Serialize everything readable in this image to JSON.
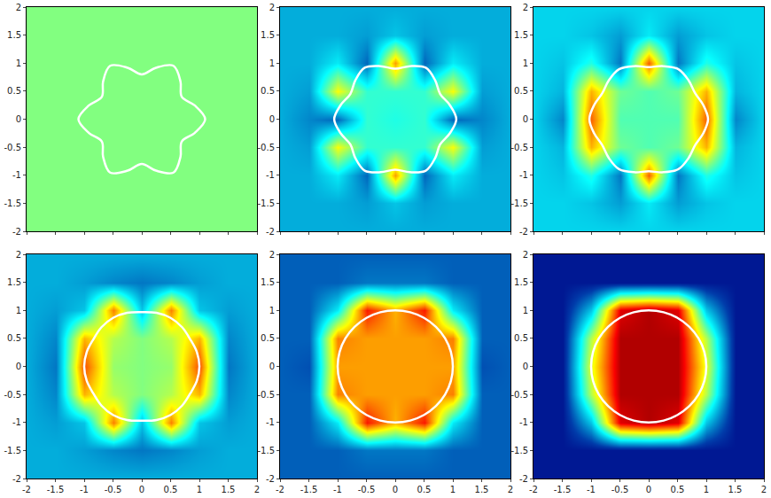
{
  "chart_data": [
    {
      "type": "heatmap",
      "xlim": [
        -2,
        2
      ],
      "ylim": [
        -2,
        2
      ],
      "xticks": [
        -2,
        -1.5,
        -1,
        -0.5,
        0,
        0.5,
        1,
        1.5,
        2
      ],
      "yticks": [
        -2,
        -1.5,
        -1,
        -0.5,
        0,
        0.5,
        1,
        1.5,
        2
      ],
      "tick_labels": "y",
      "x": [
        -2,
        -1.5,
        -1,
        -0.5,
        0,
        0.5,
        1,
        1.5,
        2
      ],
      "y": [
        -2,
        -1.5,
        -1,
        -0.5,
        0,
        0.5,
        1,
        1.5,
        2
      ],
      "zlim": [
        0,
        1
      ],
      "z": [
        [
          0.5,
          0.5,
          0.5,
          0.5,
          0.5,
          0.5,
          0.5,
          0.5,
          0.5
        ],
        [
          0.5,
          0.5,
          0.5,
          0.5,
          0.5,
          0.5,
          0.5,
          0.5,
          0.5
        ],
        [
          0.5,
          0.5,
          0.5,
          0.5,
          0.5,
          0.5,
          0.5,
          0.5,
          0.5
        ],
        [
          0.5,
          0.5,
          0.5,
          0.5,
          0.5,
          0.5,
          0.5,
          0.5,
          0.5
        ],
        [
          0.5,
          0.5,
          0.5,
          0.5,
          0.5,
          0.5,
          0.5,
          0.5,
          0.5
        ],
        [
          0.5,
          0.5,
          0.5,
          0.5,
          0.5,
          0.5,
          0.5,
          0.5,
          0.5
        ],
        [
          0.5,
          0.5,
          0.5,
          0.5,
          0.5,
          0.5,
          0.5,
          0.5,
          0.5
        ],
        [
          0.5,
          0.5,
          0.5,
          0.5,
          0.5,
          0.5,
          0.5,
          0.5,
          0.5
        ],
        [
          0.5,
          0.5,
          0.5,
          0.5,
          0.5,
          0.5,
          0.5,
          0.5,
          0.5
        ]
      ],
      "series": [
        {
          "type": "line",
          "color": "#ffffff",
          "line_style": "solid",
          "theta": [
            0,
            15,
            30,
            45,
            60,
            75,
            90,
            105,
            120,
            135,
            150,
            165,
            180,
            195,
            210,
            225,
            240,
            255,
            270,
            285,
            300,
            315,
            330,
            345,
            360
          ],
          "r": [
            1.1,
            0.95,
            0.8,
            0.95,
            1.1,
            0.95,
            0.8,
            0.95,
            1.1,
            0.95,
            0.8,
            0.95,
            1.1,
            0.95,
            0.8,
            0.95,
            1.1,
            0.95,
            0.8,
            0.95,
            1.1,
            0.95,
            0.8,
            0.95,
            1.1
          ]
        }
      ]
    },
    {
      "type": "heatmap",
      "xlim": [
        -2,
        2
      ],
      "ylim": [
        -2,
        2
      ],
      "xticks": [
        -2,
        -1.5,
        -1,
        -0.5,
        0,
        0.5,
        1,
        1.5,
        2
      ],
      "yticks": [
        -2,
        -1.5,
        -1,
        -0.5,
        0,
        0.5,
        1,
        1.5,
        2
      ],
      "tick_labels": "y",
      "x": [
        -2,
        -1.5,
        -1,
        -0.5,
        0,
        0.5,
        1,
        1.5,
        2
      ],
      "y": [
        -2,
        -1.5,
        -1,
        -0.5,
        0,
        0.5,
        1,
        1.5,
        2
      ],
      "zlim": [
        0,
        1
      ],
      "z": [
        [
          0.27,
          0.27,
          0.27,
          0.27,
          0.27,
          0.27,
          0.27,
          0.27,
          0.27
        ],
        [
          0.27,
          0.27,
          0.27,
          0.25,
          0.3,
          0.25,
          0.27,
          0.27,
          0.27
        ],
        [
          0.27,
          0.27,
          0.35,
          0.18,
          0.72,
          0.18,
          0.35,
          0.27,
          0.27
        ],
        [
          0.27,
          0.25,
          0.62,
          0.42,
          0.42,
          0.42,
          0.62,
          0.25,
          0.27
        ],
        [
          0.27,
          0.22,
          0.18,
          0.42,
          0.4,
          0.42,
          0.18,
          0.22,
          0.27
        ],
        [
          0.27,
          0.25,
          0.62,
          0.42,
          0.42,
          0.42,
          0.62,
          0.25,
          0.27
        ],
        [
          0.27,
          0.27,
          0.35,
          0.18,
          0.72,
          0.18,
          0.35,
          0.27,
          0.27
        ],
        [
          0.27,
          0.27,
          0.27,
          0.25,
          0.3,
          0.25,
          0.27,
          0.27,
          0.27
        ],
        [
          0.27,
          0.27,
          0.27,
          0.27,
          0.27,
          0.27,
          0.27,
          0.27,
          0.27
        ]
      ],
      "series": [
        {
          "type": "line",
          "color": "#ffffff",
          "line_style": "solid",
          "theta": [
            0,
            15,
            30,
            45,
            60,
            75,
            90,
            105,
            120,
            135,
            150,
            165,
            180,
            195,
            210,
            225,
            240,
            255,
            270,
            285,
            300,
            315,
            330,
            345,
            360
          ],
          "r": [
            1.06,
            0.98,
            0.9,
            0.98,
            1.06,
            0.98,
            0.9,
            0.98,
            1.06,
            0.98,
            0.9,
            0.98,
            1.06,
            0.98,
            0.9,
            0.98,
            1.06,
            0.98,
            0.9,
            0.98,
            1.06,
            0.98,
            0.9,
            0.98,
            1.06
          ]
        }
      ]
    },
    {
      "type": "heatmap",
      "xlim": [
        -2,
        2
      ],
      "ylim": [
        -2,
        2
      ],
      "xticks": [
        -2,
        -1.5,
        -1,
        -0.5,
        0,
        0.5,
        1,
        1.5,
        2
      ],
      "yticks": [
        -2,
        -1.5,
        -1,
        -0.5,
        0,
        0.5,
        1,
        1.5,
        2
      ],
      "tick_labels": "y",
      "x": [
        -2,
        -1.5,
        -1,
        -0.5,
        0,
        0.5,
        1,
        1.5,
        2
      ],
      "y": [
        -2,
        -1.5,
        -1,
        -0.5,
        0,
        0.5,
        1,
        1.5,
        2
      ],
      "zlim": [
        0,
        1
      ],
      "z": [
        [
          0.32,
          0.32,
          0.32,
          0.32,
          0.32,
          0.32,
          0.32,
          0.32,
          0.32
        ],
        [
          0.32,
          0.32,
          0.3,
          0.25,
          0.35,
          0.25,
          0.3,
          0.32,
          0.32
        ],
        [
          0.32,
          0.3,
          0.4,
          0.2,
          0.78,
          0.2,
          0.4,
          0.3,
          0.32
        ],
        [
          0.32,
          0.28,
          0.7,
          0.48,
          0.45,
          0.48,
          0.7,
          0.28,
          0.32
        ],
        [
          0.32,
          0.22,
          0.78,
          0.45,
          0.45,
          0.45,
          0.78,
          0.22,
          0.32
        ],
        [
          0.32,
          0.28,
          0.7,
          0.48,
          0.45,
          0.48,
          0.7,
          0.28,
          0.32
        ],
        [
          0.32,
          0.3,
          0.4,
          0.2,
          0.78,
          0.2,
          0.4,
          0.3,
          0.32
        ],
        [
          0.32,
          0.32,
          0.3,
          0.25,
          0.35,
          0.25,
          0.3,
          0.32,
          0.32
        ],
        [
          0.32,
          0.32,
          0.32,
          0.32,
          0.32,
          0.32,
          0.32,
          0.32,
          0.32
        ]
      ],
      "series": [
        {
          "type": "line",
          "color": "#ffffff",
          "line_style": "solid",
          "theta": [
            0,
            15,
            30,
            45,
            60,
            75,
            90,
            105,
            120,
            135,
            150,
            165,
            180,
            195,
            210,
            225,
            240,
            255,
            270,
            285,
            300,
            315,
            330,
            345,
            360
          ],
          "r": [
            1.03,
            0.98,
            0.93,
            0.98,
            1.03,
            0.98,
            0.93,
            0.98,
            1.03,
            0.98,
            0.93,
            0.98,
            1.03,
            0.98,
            0.93,
            0.98,
            1.03,
            0.98,
            0.93,
            0.98,
            1.03,
            0.98,
            0.93,
            0.98,
            1.03
          ]
        }
      ]
    },
    {
      "type": "heatmap",
      "xlim": [
        -2,
        2
      ],
      "ylim": [
        -2,
        2
      ],
      "xticks": [
        -2,
        -1.5,
        -1,
        -0.5,
        0,
        0.5,
        1,
        1.5,
        2
      ],
      "yticks": [
        -2,
        -1.5,
        -1,
        -0.5,
        0,
        0.5,
        1,
        1.5,
        2
      ],
      "x": [
        -2,
        -1.5,
        -1,
        -0.5,
        0,
        0.5,
        1,
        1.5,
        2
      ],
      "y": [
        -2,
        -1.5,
        -1,
        -0.5,
        0,
        0.5,
        1,
        1.5,
        2
      ],
      "zlim": [
        0,
        1
      ],
      "z": [
        [
          0.27,
          0.27,
          0.27,
          0.27,
          0.27,
          0.27,
          0.27,
          0.27,
          0.27
        ],
        [
          0.27,
          0.27,
          0.25,
          0.22,
          0.2,
          0.22,
          0.25,
          0.27,
          0.27
        ],
        [
          0.27,
          0.25,
          0.3,
          0.75,
          0.3,
          0.75,
          0.3,
          0.25,
          0.27
        ],
        [
          0.27,
          0.22,
          0.7,
          0.55,
          0.5,
          0.55,
          0.7,
          0.22,
          0.27
        ],
        [
          0.27,
          0.2,
          0.8,
          0.52,
          0.5,
          0.52,
          0.8,
          0.2,
          0.27
        ],
        [
          0.27,
          0.22,
          0.7,
          0.55,
          0.5,
          0.55,
          0.7,
          0.22,
          0.27
        ],
        [
          0.27,
          0.25,
          0.3,
          0.75,
          0.3,
          0.75,
          0.3,
          0.25,
          0.27
        ],
        [
          0.27,
          0.27,
          0.25,
          0.22,
          0.2,
          0.22,
          0.25,
          0.27,
          0.27
        ],
        [
          0.27,
          0.27,
          0.27,
          0.27,
          0.27,
          0.27,
          0.27,
          0.27,
          0.27
        ]
      ],
      "series": [
        {
          "type": "line",
          "color": "#ffffff",
          "line_style": "solid",
          "theta": [
            0,
            15,
            30,
            45,
            60,
            75,
            90,
            105,
            120,
            135,
            150,
            165,
            180,
            195,
            210,
            225,
            240,
            255,
            270,
            285,
            300,
            315,
            330,
            345,
            360
          ],
          "r": [
            1.0,
            0.99,
            0.97,
            0.99,
            1.0,
            0.99,
            0.97,
            0.99,
            1.0,
            0.99,
            0.97,
            0.99,
            1.0,
            0.99,
            0.97,
            0.99,
            1.0,
            0.99,
            0.97,
            0.99,
            1.0,
            0.99,
            0.97,
            0.99,
            1.0
          ]
        }
      ]
    },
    {
      "type": "heatmap",
      "xlim": [
        -2,
        2
      ],
      "ylim": [
        -2,
        2
      ],
      "xticks": [
        -2,
        -1.5,
        -1,
        -0.5,
        0,
        0.5,
        1,
        1.5,
        2
      ],
      "yticks": [
        -2,
        -1.5,
        -1,
        -0.5,
        0,
        0.5,
        1,
        1.5,
        2
      ],
      "x": [
        -2,
        -1.5,
        -1,
        -0.5,
        0,
        0.5,
        1,
        1.5,
        2
      ],
      "y": [
        -2,
        -1.5,
        -1,
        -0.5,
        0,
        0.5,
        1,
        1.5,
        2
      ],
      "zlim": [
        0,
        1
      ],
      "z": [
        [
          0.17,
          0.17,
          0.17,
          0.17,
          0.17,
          0.17,
          0.17,
          0.17,
          0.17
        ],
        [
          0.17,
          0.17,
          0.17,
          0.2,
          0.2,
          0.2,
          0.17,
          0.17,
          0.17
        ],
        [
          0.17,
          0.17,
          0.35,
          0.85,
          0.7,
          0.85,
          0.35,
          0.17,
          0.17
        ],
        [
          0.17,
          0.17,
          0.75,
          0.72,
          0.72,
          0.72,
          0.75,
          0.17,
          0.17
        ],
        [
          0.17,
          0.15,
          0.72,
          0.72,
          0.72,
          0.72,
          0.72,
          0.15,
          0.17
        ],
        [
          0.17,
          0.17,
          0.75,
          0.72,
          0.72,
          0.72,
          0.75,
          0.17,
          0.17
        ],
        [
          0.17,
          0.17,
          0.35,
          0.85,
          0.7,
          0.85,
          0.35,
          0.17,
          0.17
        ],
        [
          0.17,
          0.17,
          0.17,
          0.2,
          0.2,
          0.2,
          0.17,
          0.17,
          0.17
        ],
        [
          0.17,
          0.17,
          0.17,
          0.17,
          0.17,
          0.17,
          0.17,
          0.17,
          0.17
        ]
      ],
      "series": [
        {
          "type": "line",
          "color": "#ffffff",
          "line_style": "solid",
          "theta": [
            0,
            15,
            30,
            45,
            60,
            75,
            90,
            105,
            120,
            135,
            150,
            165,
            180,
            195,
            210,
            225,
            240,
            255,
            270,
            285,
            300,
            315,
            330,
            345,
            360
          ],
          "r": [
            1.0,
            1.0,
            1.0,
            1.0,
            1.0,
            1.0,
            1.0,
            1.0,
            1.0,
            1.0,
            1.0,
            1.0,
            1.0,
            1.0,
            1.0,
            1.0,
            1.0,
            1.0,
            1.0,
            1.0,
            1.0,
            1.0,
            1.0,
            1.0,
            1.0
          ]
        }
      ]
    },
    {
      "type": "heatmap",
      "xlim": [
        -2,
        2
      ],
      "ylim": [
        -2,
        2
      ],
      "xticks": [
        -2,
        -1.5,
        -1,
        -0.5,
        0,
        0.5,
        1,
        1.5,
        2
      ],
      "yticks": [
        -2,
        -1.5,
        -1,
        -0.5,
        0,
        0.5,
        1,
        1.5,
        2
      ],
      "x": [
        -2,
        -1.5,
        -1,
        -0.5,
        0,
        0.5,
        1,
        1.5,
        2
      ],
      "y": [
        -2,
        -1.5,
        -1,
        -0.5,
        0,
        0.5,
        1,
        1.5,
        2
      ],
      "zlim": [
        0,
        1
      ],
      "z": [
        [
          0.05,
          0.05,
          0.05,
          0.05,
          0.05,
          0.05,
          0.05,
          0.05,
          0.05
        ],
        [
          0.05,
          0.05,
          0.05,
          0.05,
          0.05,
          0.05,
          0.05,
          0.05,
          0.05
        ],
        [
          0.05,
          0.05,
          0.3,
          0.9,
          0.95,
          0.9,
          0.3,
          0.05,
          0.05
        ],
        [
          0.05,
          0.05,
          0.55,
          0.95,
          0.95,
          0.95,
          0.55,
          0.05,
          0.05
        ],
        [
          0.05,
          0.05,
          0.6,
          0.95,
          0.95,
          0.95,
          0.6,
          0.05,
          0.05
        ],
        [
          0.05,
          0.05,
          0.55,
          0.95,
          0.95,
          0.95,
          0.55,
          0.05,
          0.05
        ],
        [
          0.05,
          0.05,
          0.3,
          0.9,
          0.95,
          0.9,
          0.3,
          0.05,
          0.05
        ],
        [
          0.05,
          0.05,
          0.05,
          0.05,
          0.05,
          0.05,
          0.05,
          0.05,
          0.05
        ],
        [
          0.05,
          0.05,
          0.05,
          0.05,
          0.05,
          0.05,
          0.05,
          0.05,
          0.05
        ]
      ],
      "series": [
        {
          "type": "line",
          "color": "#ffffff",
          "line_style": "solid",
          "theta": [
            0,
            15,
            30,
            45,
            60,
            75,
            90,
            105,
            120,
            135,
            150,
            165,
            180,
            195,
            210,
            225,
            240,
            255,
            270,
            285,
            300,
            315,
            330,
            345,
            360
          ],
          "r": [
            1.0,
            1.0,
            1.0,
            1.0,
            1.0,
            1.0,
            1.0,
            1.0,
            1.0,
            1.0,
            1.0,
            1.0,
            1.0,
            1.0,
            1.0,
            1.0,
            1.0,
            1.0,
            1.0,
            1.0,
            1.0,
            1.0,
            1.0,
            1.0,
            1.0
          ]
        }
      ]
    }
  ]
}
